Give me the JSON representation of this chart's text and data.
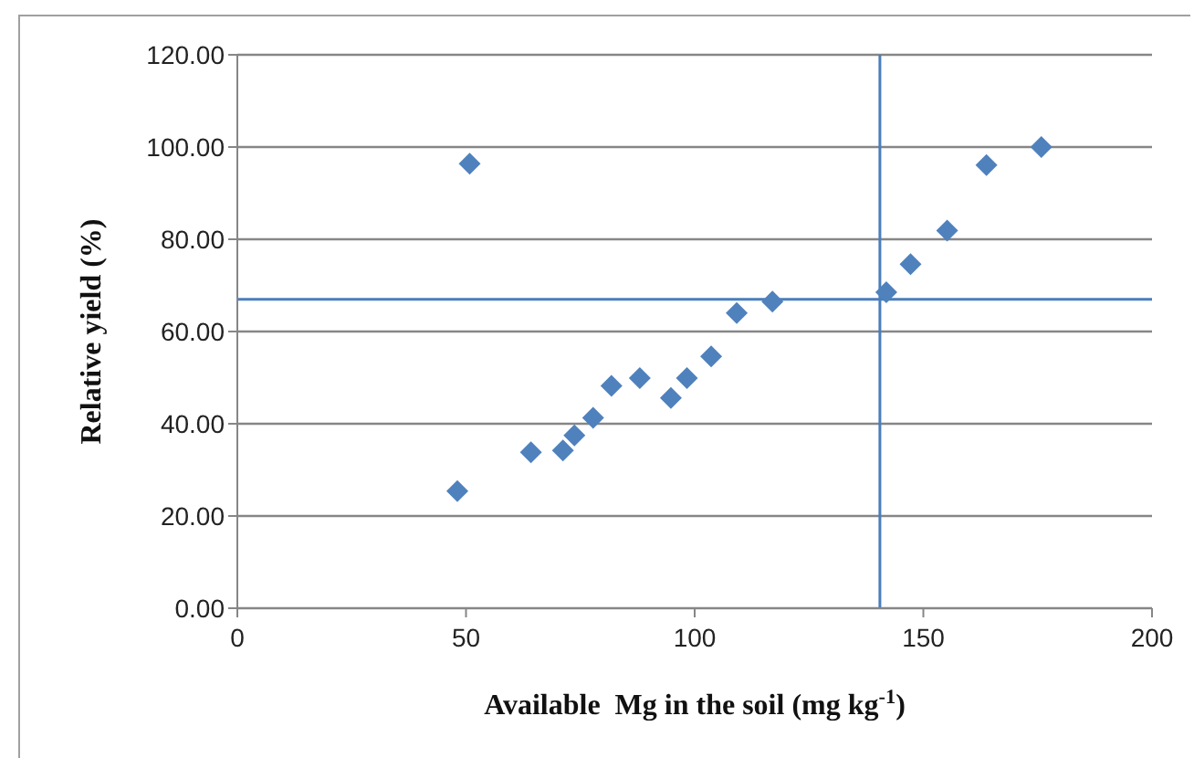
{
  "chart_data": {
    "type": "scatter",
    "xlabel": "Available  Mg in the soil (mg kg$^{-1}$)",
    "ylabel": "Relative yield  (%)",
    "x": [
      48.1,
      50.8,
      64.2,
      71.2,
      73.7,
      77.8,
      81.8,
      88.0,
      94.8,
      98.3,
      103.6,
      109.2,
      117.0,
      141.9,
      147.2,
      155.2,
      163.8,
      175.8
    ],
    "series": [
      {
        "color": "#4f81bd",
        "values": [
          25.4,
          96.4,
          33.8,
          34.2,
          37.5,
          41.3,
          48.2,
          49.9,
          45.6,
          49.9,
          54.6,
          64.0,
          66.5,
          68.5,
          74.6,
          81.9,
          96.1,
          100.0
        ]
      }
    ],
    "xlim": [
      0,
      200
    ],
    "xticks": [
      0,
      50,
      100,
      150,
      200
    ],
    "ylim": [
      0,
      120
    ],
    "yticks": [
      {
        "value": 0,
        "label": "0.00"
      },
      {
        "value": 20,
        "label": "20.00"
      },
      {
        "value": 40,
        "label": "40.00"
      },
      {
        "value": 60,
        "label": "60.00"
      },
      {
        "value": 80,
        "label": "80.00"
      },
      {
        "value": 100,
        "label": "100.00"
      },
      {
        "value": 120,
        "label": "120.00"
      }
    ],
    "ref_lines": [
      {
        "axis": "y",
        "value": 67,
        "color": "#4a7ebb"
      },
      {
        "axis": "x",
        "value": 140.5,
        "color": "#4a7ebb"
      }
    ],
    "grid": "y",
    "legend": false,
    "marker": "diamond"
  }
}
